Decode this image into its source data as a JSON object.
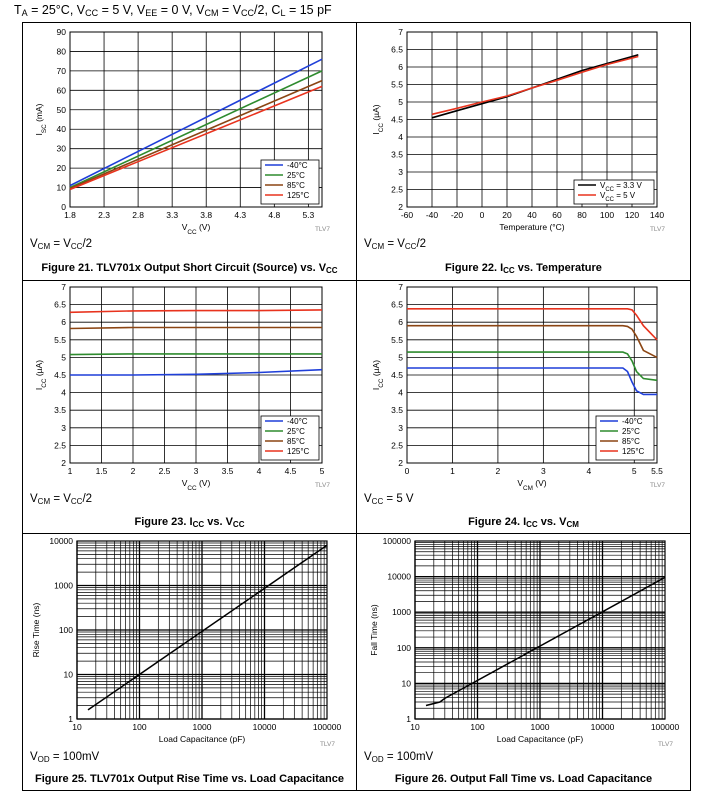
{
  "header": {
    "prefix": "T",
    "sub_a": "A",
    "temp": " = 25°C, V",
    "sub_cc": "CC",
    "vcc": " = 5 V, V",
    "sub_ee": "EE",
    "vee": " = 0 V, V",
    "sub_cm": "CM",
    "vcm": " = V",
    "sub_cc2": "CC",
    "tail": "/2, C",
    "sub_l": "L",
    "load": " = 15 pF"
  },
  "colors": {
    "m40": "#1f3fd9",
    "p25": "#2e8b2e",
    "p85": "#8b4513",
    "p125": "#e8331e",
    "vcc33": "#000000",
    "vcc5": "#e8331e",
    "trace": "#000000"
  },
  "panels": [
    {
      "cond": "VCM = VCC/2",
      "caption": "Figure 21. TLV701x Output Short Circuit (Source) vs. VCC",
      "tag": "TLV7"
    },
    {
      "cond": "VCM = VCC/2",
      "caption": "Figure 22. ICC vs. Temperature",
      "tag": "TLV7"
    },
    {
      "cond": "VCM = VCC/2",
      "caption": "Figure 23. ICC vs. VCC",
      "tag": "TLV7"
    },
    {
      "cond": "VCC = 5 V",
      "caption": "Figure 24. ICC vs. VCM",
      "tag": "TLV7"
    },
    {
      "cond": "VOD = 100mV",
      "caption": "Figure 25. TLV701x Output Rise Time vs. Load Capacitance",
      "tag": "TLV7"
    },
    {
      "cond": "VOD = 100mV",
      "caption": "Figure 26. Output Fall Time vs. Load Capacitance",
      "tag": "TLV7"
    }
  ],
  "chart_data": [
    {
      "type": "line",
      "title": "Figure 21. TLV701x Output Short Circuit (Source) vs. VCC",
      "xlabel": "VCC (V)",
      "ylabel": "ISC (mA)",
      "xlim": [
        1.8,
        5.5
      ],
      "ylim": [
        0,
        90
      ],
      "xticks": [
        "1.8",
        "2.3",
        "2.8",
        "3.3",
        "3.8",
        "4.3",
        "4.8",
        "5.3"
      ],
      "yticks": [
        "0",
        "10",
        "20",
        "30",
        "40",
        "50",
        "60",
        "70",
        "80",
        "90"
      ],
      "legend": "bottom-right",
      "x": [
        1.8,
        5.5
      ],
      "series": [
        {
          "name": "-40°C",
          "color": "m40",
          "values": [
            11,
            76
          ]
        },
        {
          "name": "25°C",
          "color": "p25",
          "values": [
            10,
            70
          ]
        },
        {
          "name": "85°C",
          "color": "p85",
          "values": [
            9.5,
            65
          ]
        },
        {
          "name": "125°C",
          "color": "p125",
          "values": [
            9,
            62
          ]
        }
      ]
    },
    {
      "type": "line",
      "title": "Figure 22. ICC vs. Temperature",
      "xlabel": "Temperature (°C)",
      "ylabel": "ICC (µA)",
      "xlim": [
        -60,
        140
      ],
      "ylim": [
        2,
        7
      ],
      "xticks": [
        "-60",
        "-40",
        "-20",
        "0",
        "20",
        "40",
        "60",
        "80",
        "100",
        "120",
        "140"
      ],
      "yticks": [
        "2",
        "2.5",
        "3",
        "3.5",
        "4",
        "4.5",
        "5",
        "5.5",
        "6",
        "6.5",
        "7"
      ],
      "legend": "bottom-right",
      "x": [
        -40,
        -20,
        0,
        20,
        40,
        60,
        80,
        100,
        125
      ],
      "series": [
        {
          "name": "VCC = 3.3 V",
          "color": "vcc33",
          "values": [
            4.55,
            4.75,
            4.95,
            5.15,
            5.4,
            5.65,
            5.9,
            6.1,
            6.35
          ]
        },
        {
          "name": "VCC = 5 V",
          "color": "vcc5",
          "values": [
            4.65,
            4.82,
            5.0,
            5.17,
            5.4,
            5.62,
            5.85,
            6.07,
            6.3
          ]
        }
      ]
    },
    {
      "type": "line",
      "title": "Figure 23. ICC vs. VCC",
      "xlabel": "VCC (V)",
      "ylabel": "ICC (µA)",
      "xlim": [
        1,
        5
      ],
      "ylim": [
        2,
        7
      ],
      "xticks": [
        "1",
        "1.5",
        "2",
        "2.5",
        "3",
        "3.5",
        "4",
        "4.5",
        "5"
      ],
      "yticks": [
        "2",
        "2.5",
        "3",
        "3.5",
        "4",
        "4.5",
        "5",
        "5.5",
        "6",
        "6.5",
        "7"
      ],
      "legend": "bottom-right",
      "x": [
        1,
        2,
        3,
        4,
        5
      ],
      "series": [
        {
          "name": "-40°C",
          "color": "m40",
          "values": [
            4.5,
            4.5,
            4.52,
            4.57,
            4.65
          ]
        },
        {
          "name": "25°C",
          "color": "p25",
          "values": [
            5.08,
            5.1,
            5.1,
            5.1,
            5.1
          ]
        },
        {
          "name": "85°C",
          "color": "p85",
          "values": [
            5.82,
            5.85,
            5.85,
            5.85,
            5.85
          ]
        },
        {
          "name": "125°C",
          "color": "p125",
          "values": [
            6.28,
            6.32,
            6.33,
            6.33,
            6.35
          ]
        }
      ]
    },
    {
      "type": "line",
      "title": "Figure 24. ICC vs. VCM",
      "xlabel": "VCM (V)",
      "ylabel": "ICC (µA)",
      "xlim": [
        0,
        5.5
      ],
      "ylim": [
        2,
        7
      ],
      "xticks": [
        "0",
        "1",
        "2",
        "3",
        "4",
        "5",
        "5.5"
      ],
      "yticks": [
        "2",
        "2.5",
        "3",
        "3.5",
        "4",
        "4.5",
        "5",
        "5.5",
        "6",
        "6.5",
        "7"
      ],
      "legend": "bottom-right",
      "x": [
        0,
        4.5,
        4.75,
        4.85,
        4.95,
        5.05,
        5.2,
        5.5
      ],
      "series": [
        {
          "name": "-40°C",
          "color": "m40",
          "values": [
            4.7,
            4.7,
            4.7,
            4.6,
            4.3,
            4.05,
            3.95,
            3.95
          ]
        },
        {
          "name": "25°C",
          "color": "p25",
          "values": [
            5.15,
            5.15,
            5.15,
            5.1,
            4.9,
            4.6,
            4.4,
            4.35
          ]
        },
        {
          "name": "85°C",
          "color": "p85",
          "values": [
            5.9,
            5.9,
            5.9,
            5.88,
            5.8,
            5.6,
            5.2,
            5.0
          ]
        },
        {
          "name": "125°C",
          "color": "p125",
          "values": [
            6.38,
            6.38,
            6.38,
            6.38,
            6.35,
            6.2,
            5.9,
            5.5
          ]
        }
      ]
    },
    {
      "type": "line",
      "title": "Figure 25. TLV701x Output Rise Time vs. Load Capacitance",
      "xlabel": "Load Capacitance (pF)",
      "ylabel": "Rise Time (ns)",
      "xscale": "log",
      "yscale": "log",
      "xlim": [
        10,
        100000
      ],
      "ylim": [
        1,
        10000
      ],
      "xticks": [
        "10",
        "100",
        "1000",
        "10000",
        "100000"
      ],
      "yticks": [
        "1",
        "10",
        "100",
        "1000",
        "10000"
      ],
      "x": [
        15,
        100000
      ],
      "series": [
        {
          "name": "Rise Time",
          "color": "trace",
          "values": [
            1.6,
            8000
          ]
        }
      ]
    },
    {
      "type": "line",
      "title": "Figure 26. Output Fall Time vs. Load Capacitance",
      "xlabel": "Load Capacitance (pF)",
      "ylabel": "Fall Time (ns)",
      "xscale": "log",
      "yscale": "log",
      "xlim": [
        10,
        100000
      ],
      "ylim": [
        1,
        100000
      ],
      "xticks": [
        "10",
        "100",
        "1000",
        "10000",
        "100000"
      ],
      "yticks": [
        "1",
        "10",
        "100",
        "1000",
        "10000",
        "100000"
      ],
      "x": [
        15,
        25,
        30,
        100000
      ],
      "series": [
        {
          "name": "Fall Time",
          "color": "trace",
          "values": [
            2.4,
            3.0,
            3.8,
            9500
          ]
        }
      ]
    }
  ]
}
